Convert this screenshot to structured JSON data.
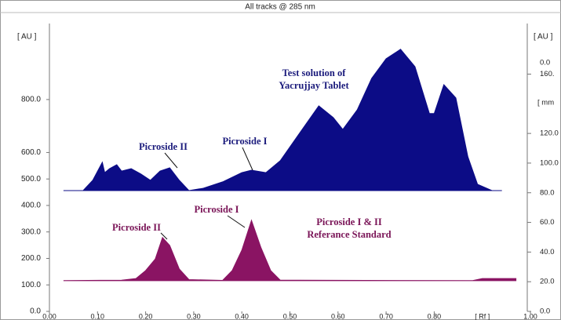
{
  "chart_data": {
    "type": "area",
    "title": "All tracks @ 285 nm",
    "xlabel": "[ Rf ]",
    "ylabel": "[ AU ]",
    "y2label": "[ AU ]",
    "xlim": [
      0,
      1
    ],
    "xticks": [
      {
        "value": 0,
        "label": "0.00"
      },
      {
        "value": 0.1,
        "label": "0.10"
      },
      {
        "value": 0.2,
        "label": "0.20"
      },
      {
        "value": 0.3,
        "label": "0.30"
      },
      {
        "value": 0.4,
        "label": "0.40"
      },
      {
        "value": 0.5,
        "label": "0.50"
      },
      {
        "value": 0.6,
        "label": "0.60"
      },
      {
        "value": 0.7,
        "label": "0.70"
      },
      {
        "value": 0.8,
        "label": "0.80"
      },
      {
        "value": 1,
        "label": "1.00"
      }
    ],
    "ylim": [
      0,
      1050
    ],
    "yticks": [
      {
        "value": 0,
        "label": "0.0"
      },
      {
        "value": 100,
        "label": "100.0"
      },
      {
        "value": 200,
        "label": "200.0"
      },
      {
        "value": 300,
        "label": "300.0"
      },
      {
        "value": 400,
        "label": "400.0"
      },
      {
        "value": 500,
        "label": "500.0"
      },
      {
        "value": 600,
        "label": "600.0"
      },
      {
        "value": 800,
        "label": "800.0"
      }
    ],
    "y2lim": [
      0,
      187.5
    ],
    "y2ticks": [
      {
        "value": 0,
        "label": "0.0"
      },
      {
        "value": 20,
        "label": "20.0"
      },
      {
        "value": 40,
        "label": "40.0"
      },
      {
        "value": 60,
        "label": "60.0"
      },
      {
        "value": 80,
        "label": "80.0"
      },
      {
        "value": 100,
        "label": "100.0"
      },
      {
        "value": 120,
        "label": "120.0"
      },
      {
        "value": 160,
        "label": "160."
      }
    ],
    "axis_notes": [
      "0.0",
      "[ mm"
    ],
    "series": [
      {
        "color": "#0c0c86",
        "x": [
          0.03,
          0.07,
          0.09,
          0.11,
          0.115,
          0.125,
          0.14,
          0.15,
          0.17,
          0.19,
          0.21,
          0.23,
          0.25,
          0.27,
          0.29,
          0.32,
          0.36,
          0.4,
          0.42,
          0.45,
          0.48,
          0.52,
          0.56,
          0.59,
          0.61,
          0.64,
          0.67,
          0.7,
          0.73,
          0.76,
          0.79,
          0.8,
          0.82,
          0.845,
          0.87,
          0.89,
          0.92,
          0.94
        ],
        "values": [
          456,
          456,
          495,
          563,
          524,
          539,
          554,
          530,
          539,
          519,
          495,
          530,
          542,
          495,
          456,
          465,
          489,
          524,
          533,
          524,
          569,
          673,
          776,
          732,
          687,
          761,
          880,
          954,
          990,
          924,
          747,
          747,
          856,
          806,
          584,
          480,
          456,
          456
        ]
      },
      {
        "color": "#8a1463",
        "x": [
          0.03,
          0.15,
          0.18,
          0.2,
          0.22,
          0.235,
          0.25,
          0.27,
          0.29,
          0.36,
          0.38,
          0.4,
          0.42,
          0.44,
          0.46,
          0.48,
          0.88,
          0.9,
          0.97
        ],
        "values": [
          116,
          118,
          124,
          154,
          198,
          279,
          249,
          160,
          120,
          117,
          154,
          231,
          344,
          240,
          154,
          118,
          116,
          124,
          124
        ]
      }
    ],
    "annotations": [
      {
        "text": "Test solution of"
      },
      {
        "text": "Yacrujjay Tablet"
      },
      {
        "text": "Picroside II"
      },
      {
        "text": "Picroside I"
      },
      {
        "text": "Picroside I"
      },
      {
        "text": "Picroside II"
      },
      {
        "text": "Picroside I & II"
      },
      {
        "text": "Referance Standard"
      }
    ]
  }
}
